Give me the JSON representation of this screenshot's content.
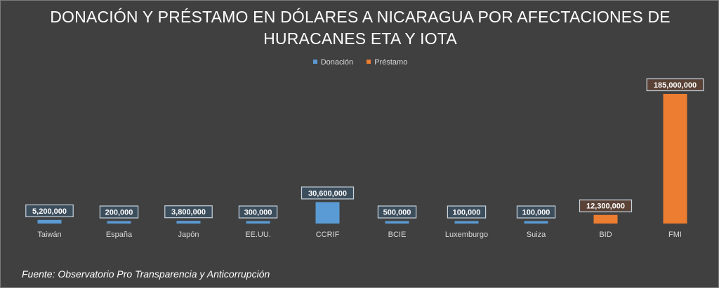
{
  "chart_data": {
    "type": "bar",
    "title_line1": "DONACIÓN Y PRÉSTAMO EN DÓLARES A NICARAGUA POR AFECTACIONES DE",
    "title_line2": "HURACANES ETA Y IOTA",
    "categories": [
      "Taiwán",
      "España",
      "Japón",
      "EE.UU.",
      "CCRIF",
      "BCIE",
      "Luxemburgo",
      "Suiza",
      "BID",
      "FMI"
    ],
    "series": [
      {
        "name": "Donación",
        "color": "#5b9bd5",
        "values": [
          5200000,
          200000,
          3800000,
          300000,
          30600000,
          500000,
          100000,
          100000,
          null,
          null
        ],
        "labels": [
          "5,200,000",
          "200,000",
          "3,800,000",
          "300,000",
          "30,600,000",
          "500,000",
          "100,000",
          "100,000",
          null,
          null
        ]
      },
      {
        "name": "Préstamo",
        "color": "#ed7d31",
        "values": [
          null,
          null,
          null,
          null,
          null,
          null,
          null,
          null,
          12300000,
          185000000
        ],
        "labels": [
          null,
          null,
          null,
          null,
          null,
          null,
          null,
          null,
          "12,300,000",
          "185,000,000"
        ]
      }
    ],
    "ylim": [
      0,
      185000000
    ],
    "grid": false,
    "legend_position": "top"
  },
  "source_text": "Fuente: Observatorio Pro Transparencia y Anticorrupción"
}
